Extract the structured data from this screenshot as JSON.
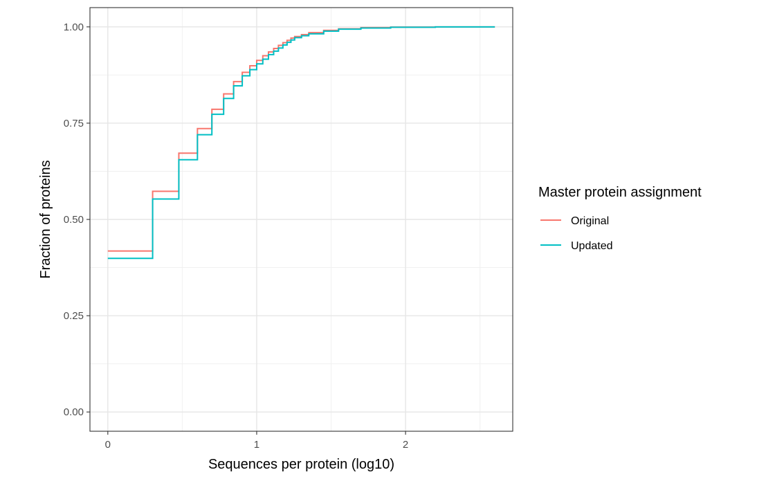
{
  "chart_data": {
    "type": "line",
    "xlabel": "Sequences per protein (log10)",
    "ylabel": "Fraction of proteins",
    "xlim": [
      -0.12,
      2.72
    ],
    "ylim": [
      -0.05,
      1.05
    ],
    "x_ticks": [
      {
        "value": 0,
        "label": "0"
      },
      {
        "value": 1,
        "label": "1"
      },
      {
        "value": 2,
        "label": "2"
      }
    ],
    "y_ticks": [
      {
        "value": 0,
        "label": "0.00"
      },
      {
        "value": 0.25,
        "label": "0.25"
      },
      {
        "value": 0.5,
        "label": "0.50"
      },
      {
        "value": 0.75,
        "label": "0.75"
      },
      {
        "value": 1,
        "label": "1.00"
      }
    ],
    "grid": true,
    "legend": {
      "title": "Master protein assignment",
      "position": "right"
    },
    "series": [
      {
        "name": "Original",
        "color": "#F8766D",
        "step": true,
        "points": [
          [
            0,
            0.418
          ],
          [
            0.301,
            0.573
          ],
          [
            0.477,
            0.672
          ],
          [
            0.602,
            0.736
          ],
          [
            0.699,
            0.786
          ],
          [
            0.778,
            0.826
          ],
          [
            0.845,
            0.858
          ],
          [
            0.903,
            0.882
          ],
          [
            0.954,
            0.899
          ],
          [
            1.0,
            0.913
          ],
          [
            1.041,
            0.925
          ],
          [
            1.079,
            0.935
          ],
          [
            1.114,
            0.944
          ],
          [
            1.146,
            0.952
          ],
          [
            1.176,
            0.959
          ],
          [
            1.204,
            0.965
          ],
          [
            1.23,
            0.971
          ],
          [
            1.255,
            0.975
          ],
          [
            1.301,
            0.98
          ],
          [
            1.35,
            0.985
          ],
          [
            1.45,
            0.991
          ],
          [
            1.55,
            0.995
          ],
          [
            1.7,
            0.998
          ],
          [
            1.9,
            0.9995
          ],
          [
            2.2,
            1.0
          ],
          [
            2.6,
            1.0
          ]
        ]
      },
      {
        "name": "Updated",
        "color": "#00BFC4",
        "step": true,
        "points": [
          [
            0,
            0.399
          ],
          [
            0.301,
            0.553
          ],
          [
            0.477,
            0.655
          ],
          [
            0.602,
            0.72
          ],
          [
            0.699,
            0.773
          ],
          [
            0.778,
            0.814
          ],
          [
            0.845,
            0.847
          ],
          [
            0.903,
            0.873
          ],
          [
            0.954,
            0.889
          ],
          [
            1.0,
            0.904
          ],
          [
            1.041,
            0.916
          ],
          [
            1.079,
            0.928
          ],
          [
            1.114,
            0.937
          ],
          [
            1.146,
            0.945
          ],
          [
            1.176,
            0.953
          ],
          [
            1.204,
            0.96
          ],
          [
            1.23,
            0.966
          ],
          [
            1.255,
            0.972
          ],
          [
            1.301,
            0.977
          ],
          [
            1.35,
            0.982
          ],
          [
            1.45,
            0.989
          ],
          [
            1.55,
            0.994
          ],
          [
            1.7,
            0.997
          ],
          [
            1.9,
            0.999
          ],
          [
            2.2,
            1.0
          ],
          [
            2.6,
            1.0
          ]
        ]
      }
    ]
  }
}
